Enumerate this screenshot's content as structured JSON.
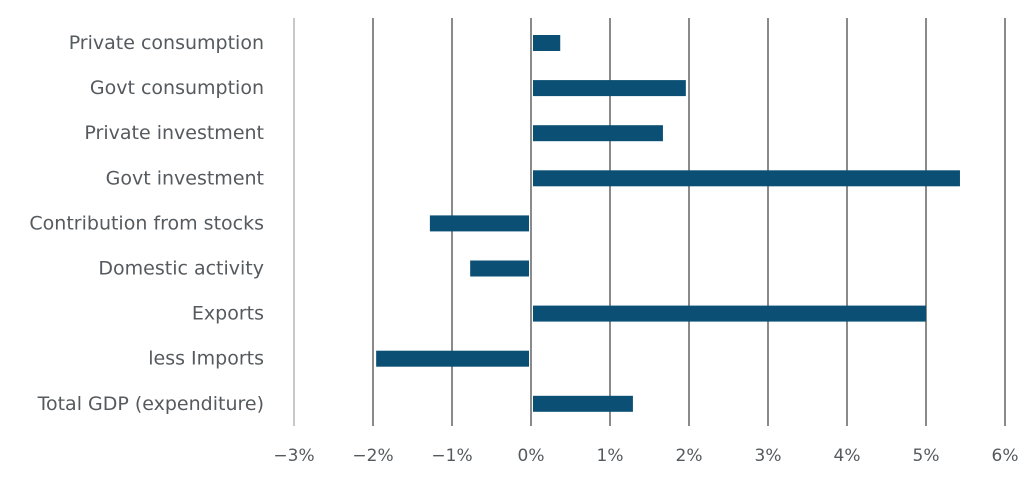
{
  "chart_data": {
    "type": "bar",
    "orientation": "horizontal",
    "categories": [
      "Private consumption",
      "Govt consumption",
      "Private investment",
      "Govt investment",
      "Contribution from stocks",
      "Domestic activity",
      "Exports",
      "less Imports",
      "Total GDP (expenditure)"
    ],
    "values": [
      0.37,
      1.96,
      1.67,
      5.43,
      -1.28,
      -0.77,
      5.0,
      -1.96,
      1.29
    ],
    "xlim": [
      -3,
      6
    ],
    "xticks": [
      -3,
      -2,
      -1,
      0,
      1,
      2,
      3,
      4,
      5,
      6
    ],
    "xtick_labels": [
      "−3%",
      "−2%",
      "−1%",
      "0%",
      "1%",
      "2%",
      "3%",
      "4%",
      "5%",
      "6%"
    ],
    "bar_color": "#0b4f75",
    "grid": true,
    "legend": "none"
  }
}
